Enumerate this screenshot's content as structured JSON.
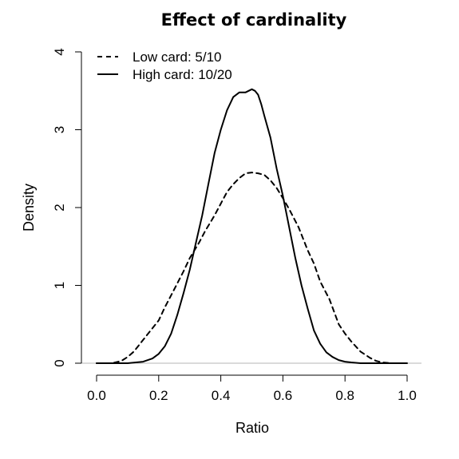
{
  "chart_data": {
    "type": "line",
    "title": "Effect of cardinality",
    "xlabel": "Ratio",
    "ylabel": "Density",
    "xlim": [
      0.0,
      1.0
    ],
    "ylim": [
      0,
      4
    ],
    "x_ticks": [
      "0.0",
      "0.2",
      "0.4",
      "0.6",
      "0.8",
      "1.0"
    ],
    "y_ticks": [
      "0",
      "1",
      "2",
      "3",
      "4"
    ],
    "legend_position": "top-left",
    "grid": false,
    "series": [
      {
        "name": "Low card: 5/10",
        "style": "dashed",
        "color": "#000000",
        "x": [
          0.0,
          0.05,
          0.08,
          0.1,
          0.12,
          0.15,
          0.18,
          0.2,
          0.22,
          0.25,
          0.28,
          0.3,
          0.33,
          0.35,
          0.38,
          0.4,
          0.42,
          0.44,
          0.46,
          0.48,
          0.5,
          0.52,
          0.54,
          0.56,
          0.58,
          0.6,
          0.62,
          0.65,
          0.68,
          0.7,
          0.72,
          0.75,
          0.78,
          0.8,
          0.82,
          0.85,
          0.88,
          0.9,
          0.92,
          0.95,
          1.0
        ],
        "y": [
          0.0,
          0.0,
          0.03,
          0.08,
          0.15,
          0.3,
          0.45,
          0.55,
          0.72,
          0.95,
          1.18,
          1.35,
          1.55,
          1.7,
          1.9,
          2.05,
          2.2,
          2.3,
          2.38,
          2.44,
          2.45,
          2.44,
          2.42,
          2.35,
          2.25,
          2.12,
          1.98,
          1.75,
          1.45,
          1.28,
          1.05,
          0.82,
          0.5,
          0.38,
          0.28,
          0.15,
          0.07,
          0.03,
          0.01,
          0.0,
          0.0
        ]
      },
      {
        "name": "High card: 10/20",
        "style": "solid",
        "color": "#000000",
        "x": [
          0.0,
          0.05,
          0.1,
          0.15,
          0.18,
          0.2,
          0.22,
          0.24,
          0.26,
          0.28,
          0.3,
          0.32,
          0.34,
          0.36,
          0.38,
          0.4,
          0.42,
          0.44,
          0.46,
          0.48,
          0.5,
          0.51,
          0.52,
          0.53,
          0.54,
          0.56,
          0.58,
          0.6,
          0.62,
          0.64,
          0.66,
          0.68,
          0.7,
          0.72,
          0.74,
          0.76,
          0.78,
          0.8,
          0.82,
          0.85,
          0.9,
          0.95,
          1.0
        ],
        "y": [
          0.0,
          0.0,
          0.0,
          0.02,
          0.06,
          0.12,
          0.22,
          0.38,
          0.62,
          0.9,
          1.2,
          1.55,
          1.9,
          2.3,
          2.7,
          3.0,
          3.25,
          3.42,
          3.48,
          3.48,
          3.52,
          3.5,
          3.45,
          3.33,
          3.18,
          2.9,
          2.5,
          2.15,
          1.75,
          1.35,
          1.0,
          0.7,
          0.42,
          0.25,
          0.14,
          0.08,
          0.04,
          0.02,
          0.01,
          0.0,
          0.0,
          0.0,
          0.0
        ]
      }
    ]
  }
}
